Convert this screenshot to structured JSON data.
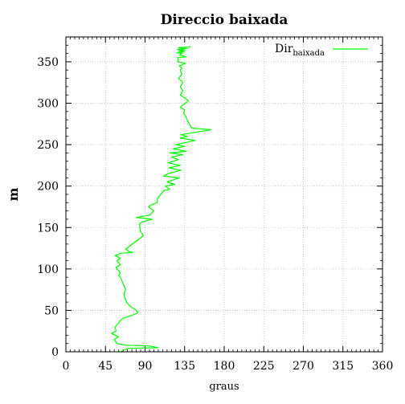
{
  "chart_data": {
    "type": "line",
    "title": "Direccio baixada",
    "xlabel": "graus",
    "ylabel": "m",
    "xlim": [
      0,
      360
    ],
    "ylim": [
      0,
      380
    ],
    "xticks": [
      "0",
      "45",
      "90",
      "135",
      "180",
      "225",
      "270",
      "315",
      "360"
    ],
    "yticks": [
      "0",
      "50",
      "100",
      "150",
      "200",
      "250",
      "300",
      "350"
    ],
    "grid": true,
    "legend_position": "top-right",
    "line_color": "#00ff00",
    "series": [
      {
        "name": "Dir",
        "name_subscript": "baixada",
        "x": [
          62,
          70,
          105,
          95,
          68,
          58,
          55,
          60,
          52,
          57,
          56,
          60,
          62,
          66,
          73,
          82,
          80,
          73,
          69,
          67,
          66,
          68,
          66,
          64,
          62,
          60,
          62,
          60,
          58,
          57,
          62,
          58,
          62,
          56,
          63,
          76,
          72,
          68,
          88,
          85,
          84,
          84,
          88,
          98,
          80,
          95,
          100,
          94,
          98,
          104,
          104,
          108,
          112,
          118,
          113,
          124,
          115,
          129,
          111,
          116,
          131,
          117,
          130,
          116,
          128,
          120,
          133,
          118,
          137,
          122,
          135,
          125,
          147,
          130,
          138,
          131,
          165,
          143,
          140,
          138,
          136,
          134,
          135,
          130,
          133,
          136,
          139,
          136,
          130,
          133,
          130,
          133,
          128,
          132,
          130,
          132,
          129,
          136,
          127,
          128,
          127,
          137,
          129,
          132,
          126,
          135,
          128,
          136,
          127,
          137,
          128,
          142
        ],
        "y": [
          0,
          4,
          5,
          7,
          8,
          10,
          15,
          18,
          22,
          25,
          30,
          35,
          38,
          41,
          43,
          47,
          50,
          55,
          60,
          65,
          70,
          75,
          80,
          85,
          90,
          92,
          95,
          98,
          100,
          102,
          105,
          110,
          113,
          116,
          119,
          120,
          121,
          124,
          140,
          145,
          150,
          155,
          157,
          160,
          162,
          165,
          170,
          175,
          178,
          180,
          185,
          190,
          195,
          196,
          200,
          202,
          205,
          210,
          212,
          215,
          219,
          222,
          225,
          228,
          232,
          235,
          238,
          240,
          242,
          245,
          248,
          250,
          255,
          258,
          260,
          262,
          268,
          270,
          275,
          280,
          285,
          288,
          292,
          295,
          298,
          300,
          303,
          306,
          310,
          315,
          320,
          325,
          330,
          335,
          340,
          342,
          345,
          348,
          350,
          352,
          355,
          356,
          358,
          360,
          361,
          362,
          363,
          364,
          365,
          366,
          367,
          368
        ]
      }
    ]
  }
}
